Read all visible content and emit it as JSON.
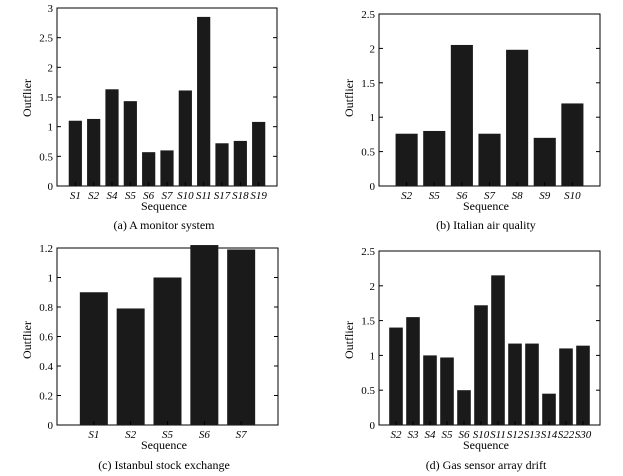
{
  "chart_data": [
    {
      "type": "bar",
      "caption": "(a) A monitor system",
      "xlabel": "Sequence",
      "ylabel": "Outflier",
      "ylim": [
        0,
        3
      ],
      "yticks": [
        "0",
        "0.5",
        "1",
        "1.5",
        "2",
        "2.5",
        "3"
      ],
      "categories": [
        "S1",
        "S2",
        "S4",
        "S5",
        "S6",
        "S7",
        "S10",
        "S11",
        "S17",
        "S18",
        "S19"
      ],
      "values": [
        1.1,
        1.13,
        1.63,
        1.43,
        0.57,
        0.6,
        1.61,
        2.85,
        0.72,
        0.76,
        1.08
      ],
      "color": "#1a1a1a"
    },
    {
      "type": "bar",
      "caption": "(b) Italian air quality",
      "xlabel": "Sequence",
      "ylabel": "Outflier",
      "ylim": [
        0,
        2.5
      ],
      "yticks": [
        "0",
        "0.5",
        "1",
        "1.5",
        "2",
        "2.5"
      ],
      "categories": [
        "S2",
        "S5",
        "S6",
        "S7",
        "S8",
        "S9",
        "S10"
      ],
      "values": [
        0.76,
        0.8,
        2.05,
        0.76,
        1.98,
        0.7,
        1.2
      ],
      "color": "#1a1a1a"
    },
    {
      "type": "bar",
      "caption": "(c) Istanbul stock exchange",
      "xlabel": "Sequence",
      "ylabel": "Outflier",
      "ylim": [
        0,
        1.2
      ],
      "yticks": [
        "0",
        "0.2",
        "0.4",
        "0.6",
        "0.8",
        "1",
        "1.2"
      ],
      "categories": [
        "S1",
        "S2",
        "S5",
        "S6",
        "S7"
      ],
      "values": [
        0.9,
        0.79,
        1.0,
        1.22,
        1.19
      ],
      "color": "#1a1a1a"
    },
    {
      "type": "bar",
      "caption": "(d) Gas sensor array drift",
      "xlabel": "Sequence",
      "ylabel": "Outflier",
      "ylim": [
        0,
        2.5
      ],
      "yticks": [
        "0",
        "0.5",
        "1",
        "1.5",
        "2",
        "2.5"
      ],
      "categories": [
        "S2",
        "S3",
        "S4",
        "S5",
        "S6",
        "S10",
        "S11",
        "S12",
        "S13",
        "S14",
        "S22",
        "S30"
      ],
      "values": [
        1.4,
        1.55,
        1.0,
        0.97,
        0.5,
        1.72,
        2.15,
        1.17,
        1.17,
        0.45,
        1.1,
        1.14
      ],
      "color": "#1a1a1a"
    }
  ]
}
